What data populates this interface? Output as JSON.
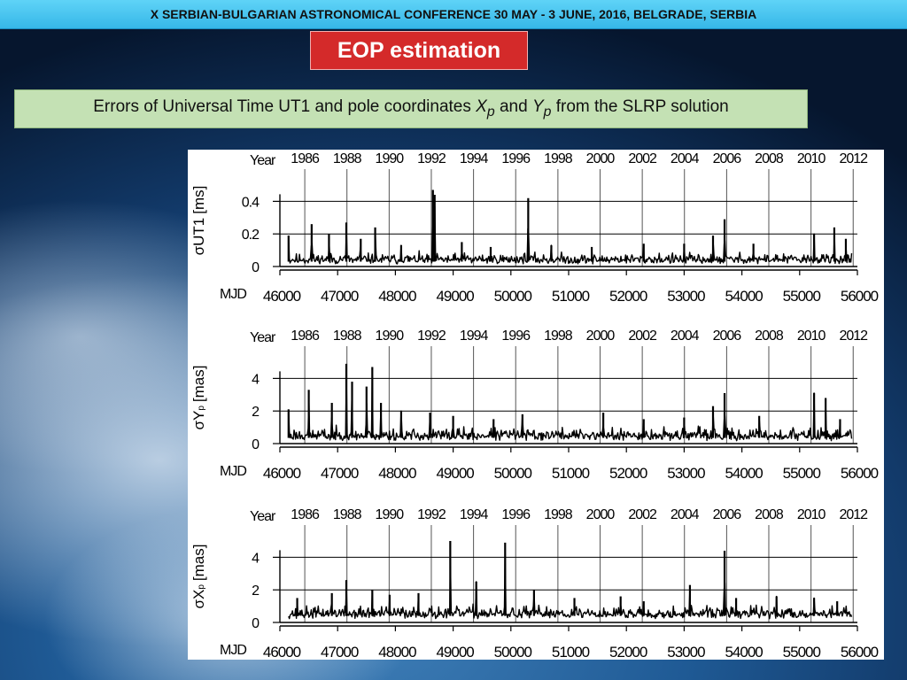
{
  "header": {
    "banner": "X SERBIAN-BULGARIAN ASTRONOMICAL CONFERENCE 30 MAY - 3 JUNE, 2016, BELGRADE, SERBIA",
    "title": "EOP estimation",
    "subtitle": {
      "part1": "Errors of Universal Time UT1 and pole coordinates ",
      "x_sym": "X",
      "x_sub": "p",
      "part2": " and ",
      "y_sym": "Y",
      "y_sub": "p",
      "part3": " from the SLRP solution"
    }
  },
  "colors": {
    "banner": "#36b7e8",
    "title_bg": "#d42a2a",
    "subtitle_bg": "#c4e1b4",
    "ink": "#000000"
  },
  "chart_data": [
    {
      "type": "line",
      "ylabel": {
        "sigma": "σ",
        "main": "UT1",
        "sub": "",
        "unit": "[ms]"
      },
      "year_label": "Year",
      "mjd_label": "MJD",
      "years": [
        1986,
        1988,
        1990,
        1992,
        1994,
        1996,
        1998,
        2000,
        2002,
        2004,
        2006,
        2008,
        2010,
        2012
      ],
      "years_mjd": [
        46431,
        47161,
        47892,
        48622,
        49353,
        50083,
        50814,
        51544,
        52275,
        53005,
        53736,
        54466,
        55197,
        55927
      ],
      "mjd_ticks": [
        46000,
        47000,
        48000,
        49000,
        50000,
        51000,
        52000,
        53000,
        54000,
        55000,
        56000
      ],
      "xlim": [
        46000,
        56000
      ],
      "yticks": [
        0,
        0.2,
        0.4
      ],
      "ytick_labels": [
        "0",
        "0.2",
        "0.4"
      ],
      "ylim": [
        0,
        0.5
      ],
      "base": 0.03,
      "noise": 0.025,
      "seed": 11,
      "spikes": [
        [
          46150,
          0.19
        ],
        [
          46550,
          0.26
        ],
        [
          46850,
          0.2
        ],
        [
          47150,
          0.27
        ],
        [
          47400,
          0.17
        ],
        [
          47650,
          0.24
        ],
        [
          48100,
          0.13
        ],
        [
          48650,
          0.47
        ],
        [
          48680,
          0.44
        ],
        [
          49150,
          0.15
        ],
        [
          49650,
          0.12
        ],
        [
          50300,
          0.42
        ],
        [
          50700,
          0.13
        ],
        [
          51400,
          0.12
        ],
        [
          52300,
          0.14
        ],
        [
          53000,
          0.14
        ],
        [
          53500,
          0.19
        ],
        [
          53700,
          0.29
        ],
        [
          54200,
          0.14
        ],
        [
          55250,
          0.2
        ],
        [
          55600,
          0.24
        ],
        [
          55800,
          0.17
        ]
      ]
    },
    {
      "type": "line",
      "ylabel": {
        "sigma": "σ",
        "main": "Y",
        "sub": "p",
        "unit": "[mas]"
      },
      "year_label": "Year",
      "mjd_label": "MJD",
      "years": [
        1986,
        1988,
        1990,
        1992,
        1994,
        1996,
        1998,
        2000,
        2002,
        2004,
        2006,
        2008,
        2010,
        2012
      ],
      "years_mjd": [
        46431,
        47161,
        47892,
        48622,
        49353,
        50083,
        50814,
        51544,
        52275,
        53005,
        53736,
        54466,
        55197,
        55927
      ],
      "mjd_ticks": [
        46000,
        47000,
        48000,
        49000,
        50000,
        51000,
        52000,
        53000,
        54000,
        55000,
        56000
      ],
      "xlim": [
        46000,
        56000
      ],
      "yticks": [
        0,
        2,
        4
      ],
      "ytick_labels": [
        "0",
        "2",
        "4"
      ],
      "ylim": [
        0,
        5
      ],
      "base": 0.35,
      "noise": 0.3,
      "seed": 23,
      "spikes": [
        [
          46150,
          2.1
        ],
        [
          46500,
          3.3
        ],
        [
          46900,
          2.5
        ],
        [
          47150,
          4.9
        ],
        [
          47250,
          3.8
        ],
        [
          47500,
          3.5
        ],
        [
          47600,
          4.7
        ],
        [
          47750,
          2.5
        ],
        [
          48100,
          2.0
        ],
        [
          48600,
          1.9
        ],
        [
          49000,
          1.7
        ],
        [
          49700,
          1.5
        ],
        [
          50200,
          1.8
        ],
        [
          51600,
          1.9
        ],
        [
          52300,
          1.5
        ],
        [
          53000,
          1.6
        ],
        [
          53500,
          2.3
        ],
        [
          53700,
          3.1
        ],
        [
          54300,
          1.7
        ],
        [
          55250,
          3.1
        ],
        [
          55450,
          2.8
        ],
        [
          55700,
          1.5
        ]
      ]
    },
    {
      "type": "line",
      "ylabel": {
        "sigma": "σ",
        "main": "X",
        "sub": "p",
        "unit": "[mas]"
      },
      "year_label": "Year",
      "mjd_label": "MJD",
      "years": [
        1986,
        1988,
        1990,
        1992,
        1994,
        1996,
        1998,
        2000,
        2002,
        2004,
        2006,
        2008,
        2010,
        2012
      ],
      "years_mjd": [
        46431,
        47161,
        47892,
        48622,
        49353,
        50083,
        50814,
        51544,
        52275,
        53005,
        53736,
        54466,
        55197,
        55927
      ],
      "mjd_ticks": [
        46000,
        47000,
        48000,
        49000,
        50000,
        51000,
        52000,
        53000,
        54000,
        55000,
        56000
      ],
      "xlim": [
        46000,
        56000
      ],
      "yticks": [
        0,
        2,
        4
      ],
      "ytick_labels": [
        "0",
        "2",
        "4"
      ],
      "ylim": [
        0,
        5
      ],
      "base": 0.4,
      "noise": 0.3,
      "seed": 37,
      "spikes": [
        [
          46300,
          1.5
        ],
        [
          46900,
          1.8
        ],
        [
          47150,
          2.6
        ],
        [
          47600,
          2.0
        ],
        [
          47900,
          1.7
        ],
        [
          48400,
          1.8
        ],
        [
          48950,
          5.0
        ],
        [
          49400,
          2.5
        ],
        [
          49900,
          4.9
        ],
        [
          50400,
          2.0
        ],
        [
          51100,
          1.5
        ],
        [
          51900,
          1.6
        ],
        [
          52300,
          1.3
        ],
        [
          53100,
          2.3
        ],
        [
          53700,
          4.4
        ],
        [
          53900,
          1.5
        ],
        [
          54600,
          1.6
        ],
        [
          55250,
          1.5
        ],
        [
          55650,
          1.3
        ]
      ]
    }
  ]
}
